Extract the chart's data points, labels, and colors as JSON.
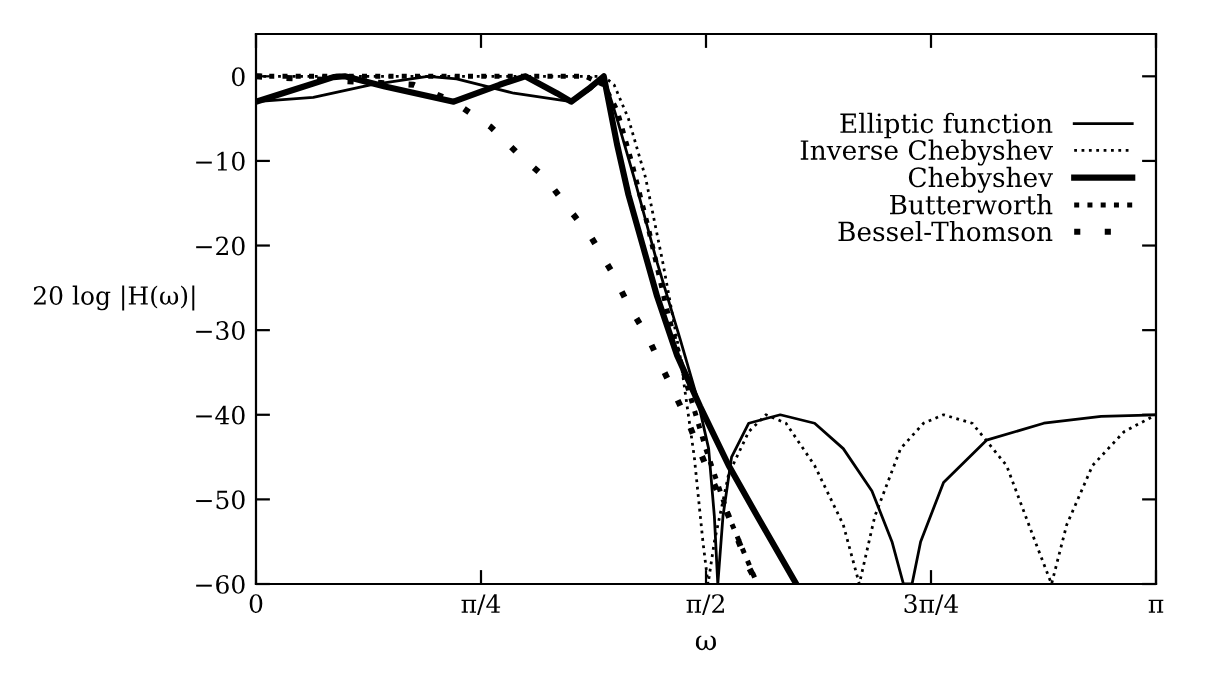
{
  "chart_data": {
    "type": "line",
    "xlabel": "ω",
    "ylabel": "20 log |H(ω)|",
    "xlim": [
      0,
      3.1416
    ],
    "ylim": [
      -60,
      5
    ],
    "xticks": [
      0,
      {
        "value": 0.7854,
        "label": "π/4"
      },
      {
        "value": 1.5708,
        "label": "π/2"
      },
      {
        "value": 2.3562,
        "label": "3π/4"
      },
      {
        "value": 3.1416,
        "label": "π"
      }
    ],
    "yticks": [
      0,
      -10,
      -20,
      -30,
      -40,
      -50,
      -60
    ],
    "grid": false,
    "legend": "top right",
    "marker": "none",
    "series": [
      {
        "name": "Elliptic function",
        "color": "#000000",
        "line_style": "solid",
        "x": [
          0,
          0.2,
          0.4,
          0.6,
          0.7,
          0.9,
          1.1,
          1.17,
          1.214,
          1.26,
          1.32,
          1.4,
          1.48,
          1.54,
          1.58,
          1.6,
          1.612,
          1.63,
          1.66,
          1.72,
          1.83,
          1.95,
          2.05,
          2.15,
          2.22,
          2.26,
          2.29,
          2.32,
          2.4,
          2.55,
          2.75,
          2.95,
          3.1416
        ],
        "values": [
          -3,
          -2.5,
          -1,
          0,
          -0.3,
          -2,
          -3,
          -1.5,
          0,
          -5,
          -12,
          -22,
          -31,
          -38,
          -44,
          -52,
          -60,
          -52,
          -45,
          -41,
          -40,
          -41,
          -44,
          -49,
          -55,
          -60,
          -60,
          -55,
          -48,
          -43,
          -41,
          -40.2,
          -40
        ]
      },
      {
        "name": "Inverse Chebyshev",
        "color": "#000000",
        "line_style": "dotted",
        "x": [
          0,
          1.214,
          1.25,
          1.3,
          1.36,
          1.42,
          1.48,
          1.53,
          1.56,
          1.578,
          1.6,
          1.65,
          1.72,
          1.78,
          1.85,
          1.95,
          2.05,
          2.106,
          2.16,
          2.25,
          2.33,
          2.4,
          2.5,
          2.62,
          2.72,
          2.777,
          2.83,
          2.92,
          3.03,
          3.1416
        ],
        "values": [
          0,
          0,
          -1,
          -5,
          -12,
          -22,
          -33,
          -45,
          -55,
          -60,
          -55,
          -47,
          -42,
          -40,
          -41,
          -46,
          -53,
          -60,
          -52,
          -44,
          -41,
          -40,
          -41,
          -46,
          -55,
          -60,
          -53,
          -46,
          -42,
          -40
        ]
      },
      {
        "name": "Chebyshev",
        "color": "#000000",
        "line_style": "solid",
        "x": [
          0,
          0.14,
          0.27,
          0.31,
          0.45,
          0.69,
          0.85,
          0.94,
          1.05,
          1.1,
          1.16,
          1.214,
          1.26,
          1.3,
          1.35,
          1.4,
          1.47,
          1.55,
          1.65,
          1.75,
          1.886
        ],
        "values": [
          -3,
          -1.5,
          -0.1,
          0,
          -1.2,
          -3,
          -1,
          0,
          -2,
          -3,
          -1.5,
          0,
          -8,
          -14,
          -20,
          -26,
          -33,
          -39,
          -46,
          -52,
          -60
        ]
      },
      {
        "name": "Butterworth",
        "color": "#000000",
        "line_style": "dotted",
        "x": [
          0,
          1.15,
          1.214,
          1.26,
          1.31,
          1.37,
          1.43,
          1.5,
          1.57,
          1.65,
          1.75
        ],
        "values": [
          0,
          0,
          -1,
          -4,
          -10,
          -18,
          -27,
          -36,
          -44,
          -52,
          -60
        ]
      },
      {
        "name": "Bessel-Thomson",
        "color": "#000000",
        "line_style": "dotted",
        "x": [
          0,
          0.55,
          0.69,
          0.82,
          0.91,
          1.01,
          1.1,
          1.17,
          1.24,
          1.3,
          1.37,
          1.44,
          1.51,
          1.57,
          1.65,
          1.72,
          1.75
        ],
        "values": [
          0,
          -1,
          -3,
          -6,
          -9,
          -12,
          -16,
          -19,
          -23,
          -27,
          -31,
          -36,
          -41,
          -46,
          -52,
          -58,
          -60
        ]
      }
    ]
  }
}
